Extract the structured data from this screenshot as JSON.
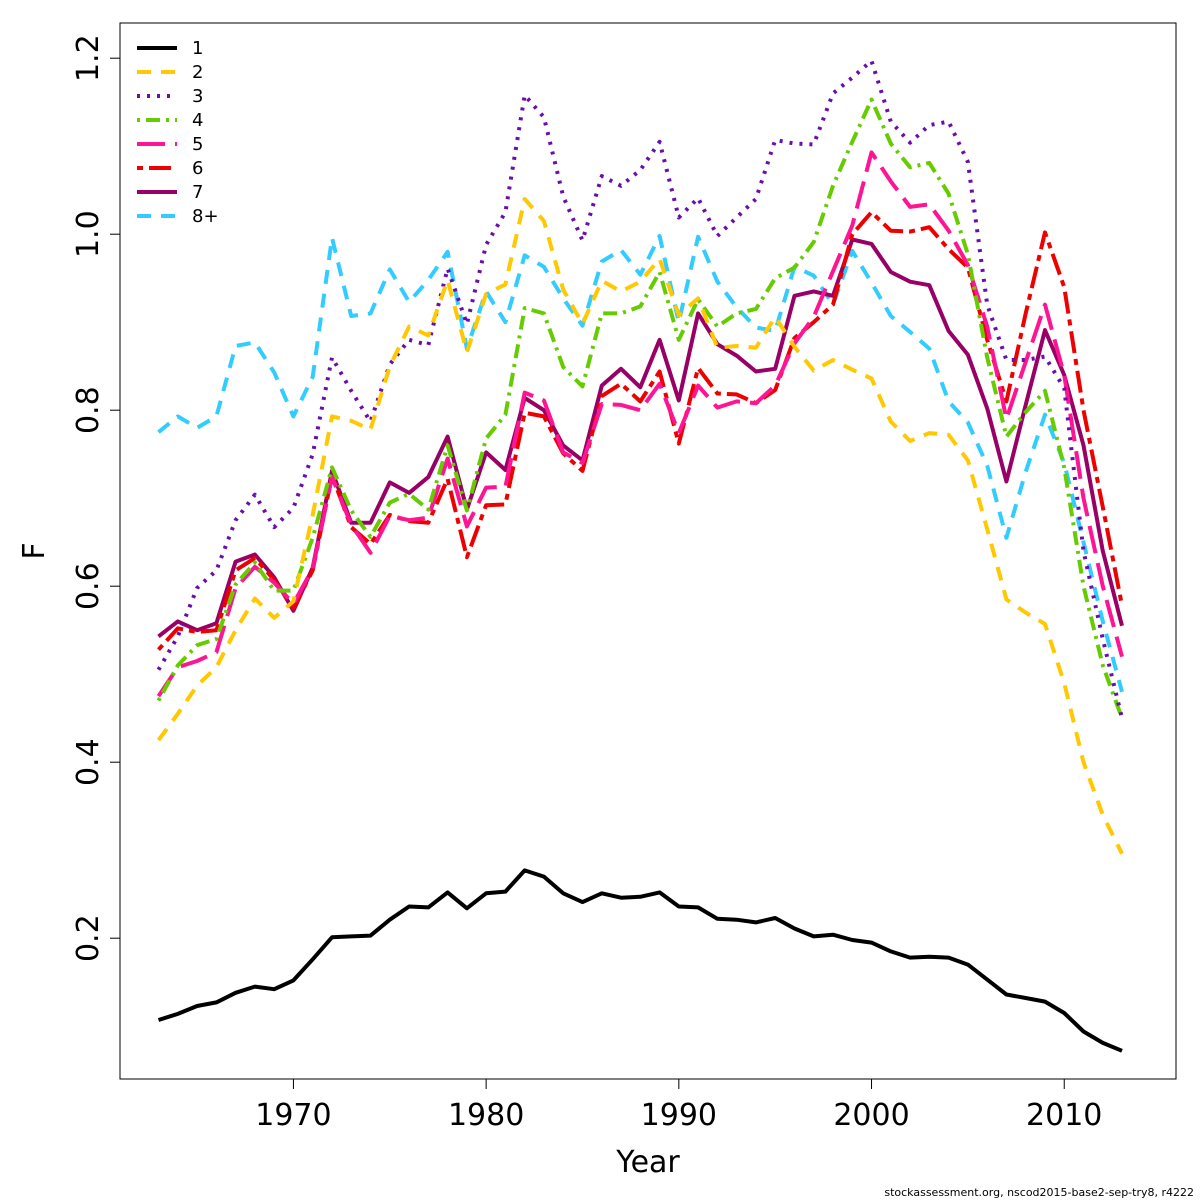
{
  "chart_data": {
    "type": "line",
    "xlabel": "Year",
    "ylabel": "F",
    "xlim": [
      1961.0,
      2015.8
    ],
    "ylim": [
      0.04,
      1.24
    ],
    "x_ticks": [
      1970,
      1980,
      1990,
      2000,
      2010
    ],
    "y_ticks": [
      0.2,
      0.4,
      0.6,
      0.8,
      1.0,
      1.2
    ],
    "x_tick_labels": [
      "1970",
      "1980",
      "1990",
      "2000",
      "2010"
    ],
    "y_tick_labels": [
      "0.2",
      "0.4",
      "0.6",
      "0.8",
      "1.0",
      "1.2"
    ],
    "grid": false,
    "legend_position": "top-left",
    "x": [
      1963,
      1964,
      1965,
      1966,
      1967,
      1968,
      1969,
      1970,
      1971,
      1972,
      1973,
      1974,
      1975,
      1976,
      1977,
      1978,
      1979,
      1980,
      1981,
      1982,
      1983,
      1984,
      1985,
      1986,
      1987,
      1988,
      1989,
      1990,
      1991,
      1992,
      1993,
      1994,
      1995,
      1996,
      1997,
      1998,
      1999,
      2000,
      2001,
      2002,
      2003,
      2004,
      2005,
      2006,
      2007,
      2008,
      2009,
      2010,
      2011,
      2012,
      2013
    ],
    "series": [
      {
        "name": "1",
        "color": "#000000",
        "dash": "solid",
        "values": [
          0.107,
          0.114,
          0.123,
          0.127,
          0.138,
          0.145,
          0.142,
          0.152,
          0.176,
          0.201,
          0.202,
          0.203,
          0.221,
          0.236,
          0.235,
          0.252,
          0.234,
          0.251,
          0.253,
          0.277,
          0.27,
          0.251,
          0.241,
          0.251,
          0.246,
          0.247,
          0.252,
          0.236,
          0.235,
          0.222,
          0.221,
          0.218,
          0.223,
          0.211,
          0.202,
          0.204,
          0.198,
          0.195,
          0.185,
          0.178,
          0.179,
          0.178,
          0.17,
          0.153,
          0.136,
          0.132,
          0.128,
          0.115,
          0.094,
          0.081,
          0.072
        ]
      },
      {
        "name": "2",
        "color": "#FFC800",
        "dash": "dashed",
        "values": [
          0.425,
          0.455,
          0.487,
          0.508,
          0.55,
          0.586,
          0.564,
          0.583,
          0.681,
          0.793,
          0.788,
          0.778,
          0.85,
          0.895,
          0.885,
          0.948,
          0.866,
          0.932,
          0.943,
          1.04,
          1.015,
          0.937,
          0.898,
          0.947,
          0.935,
          0.946,
          0.972,
          0.908,
          0.927,
          0.871,
          0.873,
          0.871,
          0.906,
          0.872,
          0.845,
          0.857,
          0.846,
          0.836,
          0.787,
          0.765,
          0.774,
          0.772,
          0.743,
          0.665,
          0.585,
          0.57,
          0.557,
          0.49,
          0.4,
          0.34,
          0.296
        ]
      },
      {
        "name": "3",
        "color": "#6A0DAD",
        "dash": "dotted",
        "values": [
          0.505,
          0.543,
          0.598,
          0.618,
          0.675,
          0.704,
          0.667,
          0.689,
          0.75,
          0.86,
          0.822,
          0.787,
          0.852,
          0.88,
          0.874,
          0.961,
          0.898,
          0.988,
          1.025,
          1.158,
          1.133,
          1.043,
          0.993,
          1.066,
          1.055,
          1.073,
          1.105,
          1.019,
          1.041,
          0.998,
          1.019,
          1.04,
          1.107,
          1.103,
          1.102,
          1.16,
          1.178,
          1.197,
          1.128,
          1.104,
          1.124,
          1.128,
          1.082,
          0.92,
          0.857,
          0.857,
          0.861,
          0.825,
          0.64,
          0.54,
          0.45
        ]
      },
      {
        "name": "4",
        "color": "#66CC00",
        "dash": "dashdot",
        "values": [
          0.47,
          0.51,
          0.533,
          0.54,
          0.602,
          0.627,
          0.595,
          0.595,
          0.655,
          0.735,
          0.686,
          0.656,
          0.695,
          0.705,
          0.687,
          0.76,
          0.686,
          0.768,
          0.795,
          0.916,
          0.91,
          0.849,
          0.827,
          0.91,
          0.91,
          0.918,
          0.957,
          0.88,
          0.926,
          0.895,
          0.91,
          0.915,
          0.95,
          0.962,
          0.991,
          1.055,
          1.105,
          1.153,
          1.103,
          1.076,
          1.081,
          1.046,
          0.977,
          0.86,
          0.77,
          0.798,
          0.822,
          0.735,
          0.6,
          0.51,
          0.45
        ]
      },
      {
        "name": "5",
        "color": "#FF1493",
        "dash": "longdash",
        "values": [
          0.475,
          0.508,
          0.515,
          0.525,
          0.598,
          0.622,
          0.604,
          0.58,
          0.62,
          0.724,
          0.67,
          0.638,
          0.68,
          0.675,
          0.678,
          0.745,
          0.668,
          0.712,
          0.713,
          0.82,
          0.811,
          0.752,
          0.74,
          0.807,
          0.806,
          0.8,
          0.83,
          0.774,
          0.828,
          0.803,
          0.81,
          0.808,
          0.828,
          0.876,
          0.906,
          0.958,
          1.01,
          1.093,
          1.06,
          1.031,
          1.034,
          1.004,
          0.965,
          0.895,
          0.79,
          0.855,
          0.92,
          0.84,
          0.7,
          0.6,
          0.52
        ]
      },
      {
        "name": "6",
        "color": "#EE0000",
        "dash": "twodash",
        "values": [
          0.528,
          0.552,
          0.548,
          0.55,
          0.618,
          0.632,
          0.607,
          0.575,
          0.618,
          0.726,
          0.667,
          0.648,
          0.681,
          0.674,
          0.672,
          0.722,
          0.633,
          0.692,
          0.693,
          0.797,
          0.793,
          0.751,
          0.731,
          0.816,
          0.83,
          0.81,
          0.844,
          0.762,
          0.848,
          0.819,
          0.818,
          0.808,
          0.823,
          0.882,
          0.9,
          0.92,
          1.0,
          1.025,
          1.004,
          1.003,
          1.008,
          0.983,
          0.962,
          0.88,
          0.81,
          0.91,
          1.002,
          0.94,
          0.8,
          0.69,
          0.578
        ]
      },
      {
        "name": "7",
        "color": "#990066",
        "dash": "solid",
        "values": [
          0.543,
          0.56,
          0.55,
          0.558,
          0.628,
          0.636,
          0.61,
          0.572,
          0.621,
          0.731,
          0.672,
          0.672,
          0.718,
          0.706,
          0.724,
          0.77,
          0.687,
          0.752,
          0.732,
          0.814,
          0.8,
          0.76,
          0.743,
          0.828,
          0.847,
          0.826,
          0.88,
          0.811,
          0.91,
          0.875,
          0.862,
          0.844,
          0.847,
          0.93,
          0.935,
          0.93,
          0.994,
          0.989,
          0.957,
          0.946,
          0.942,
          0.89,
          0.863,
          0.802,
          0.719,
          0.806,
          0.891,
          0.84,
          0.76,
          0.64,
          0.555
        ]
      },
      {
        "name": "8+",
        "color": "#33CCFF",
        "dash": "dashed",
        "values": [
          0.775,
          0.793,
          0.78,
          0.793,
          0.873,
          0.877,
          0.843,
          0.793,
          0.838,
          0.996,
          0.907,
          0.91,
          0.96,
          0.923,
          0.948,
          0.98,
          0.87,
          0.935,
          0.9,
          0.976,
          0.963,
          0.927,
          0.896,
          0.969,
          0.982,
          0.954,
          0.998,
          0.9,
          0.997,
          0.946,
          0.917,
          0.894,
          0.89,
          0.963,
          0.953,
          0.92,
          0.981,
          0.945,
          0.907,
          0.889,
          0.87,
          0.81,
          0.786,
          0.737,
          0.655,
          0.73,
          0.795,
          0.74,
          0.65,
          0.56,
          0.48
        ]
      }
    ]
  },
  "footer": "stockassessment.org, nscod2015-base2-sep-try8, r4222"
}
